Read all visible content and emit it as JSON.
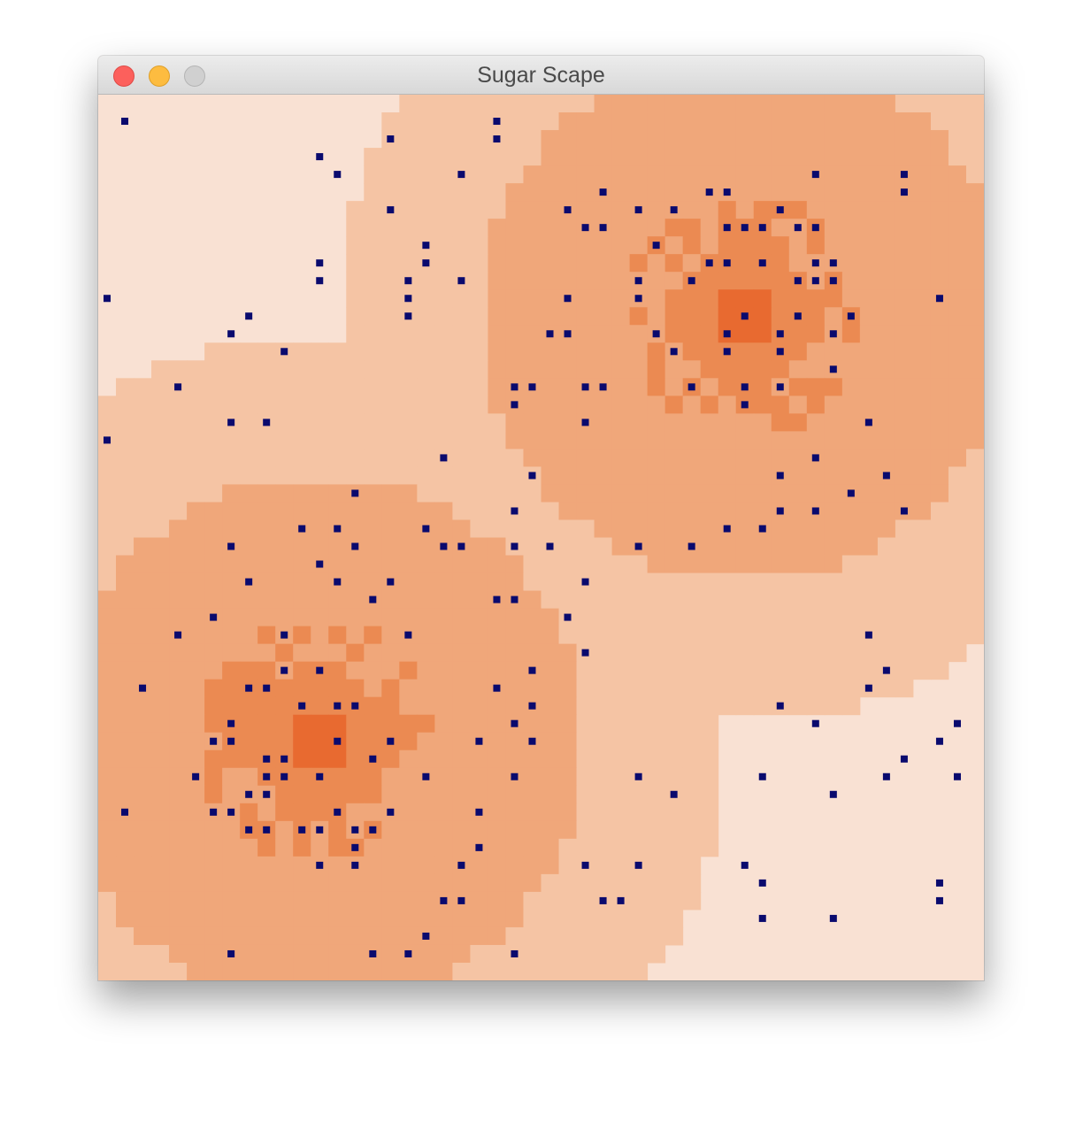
{
  "window": {
    "title": "Sugar Scape",
    "buttons": [
      "close",
      "minimize",
      "zoom"
    ]
  },
  "grid": {
    "size": 50,
    "peaks": [
      [
        36,
        12
      ],
      [
        12,
        36
      ]
    ],
    "level_colors": [
      "#f9e1d3",
      "#f5c4a4",
      "#f0a77a",
      "#eb8a52",
      "#e86a30"
    ]
  },
  "agent_color": "#0a0a6e",
  "agents": [
    [
      1,
      1
    ],
    [
      16,
      2
    ],
    [
      22,
      1
    ],
    [
      22,
      2
    ],
    [
      12,
      3
    ],
    [
      13,
      4
    ],
    [
      20,
      4
    ],
    [
      16,
      6
    ],
    [
      18,
      8
    ],
    [
      18,
      9
    ],
    [
      12,
      9
    ],
    [
      12,
      10
    ],
    [
      17,
      10
    ],
    [
      17,
      11
    ],
    [
      20,
      10
    ],
    [
      17,
      12
    ],
    [
      0,
      11
    ],
    [
      8,
      12
    ],
    [
      7,
      13
    ],
    [
      10,
      14
    ],
    [
      4,
      16
    ],
    [
      7,
      18
    ],
    [
      9,
      18
    ],
    [
      0,
      19
    ],
    [
      26,
      6
    ],
    [
      28,
      5
    ],
    [
      30,
      6
    ],
    [
      27,
      7
    ],
    [
      28,
      7
    ],
    [
      32,
      6
    ],
    [
      34,
      5
    ],
    [
      35,
      5
    ],
    [
      35,
      7
    ],
    [
      36,
      7
    ],
    [
      37,
      7
    ],
    [
      38,
      6
    ],
    [
      39,
      7
    ],
    [
      40,
      7
    ],
    [
      31,
      8
    ],
    [
      34,
      9
    ],
    [
      35,
      9
    ],
    [
      37,
      9
    ],
    [
      40,
      9
    ],
    [
      41,
      9
    ],
    [
      30,
      10
    ],
    [
      30,
      11
    ],
    [
      33,
      10
    ],
    [
      39,
      10
    ],
    [
      40,
      10
    ],
    [
      41,
      10
    ],
    [
      26,
      11
    ],
    [
      36,
      12
    ],
    [
      39,
      12
    ],
    [
      42,
      12
    ],
    [
      25,
      13
    ],
    [
      26,
      13
    ],
    [
      31,
      13
    ],
    [
      35,
      13
    ],
    [
      38,
      13
    ],
    [
      41,
      13
    ],
    [
      32,
      14
    ],
    [
      35,
      14
    ],
    [
      38,
      14
    ],
    [
      33,
      16
    ],
    [
      36,
      16
    ],
    [
      38,
      16
    ],
    [
      36,
      17
    ],
    [
      41,
      15
    ],
    [
      23,
      16
    ],
    [
      24,
      16
    ],
    [
      27,
      16
    ],
    [
      28,
      16
    ],
    [
      23,
      17
    ],
    [
      27,
      18
    ],
    [
      47,
      11
    ],
    [
      43,
      18
    ],
    [
      40,
      4
    ],
    [
      45,
      4
    ],
    [
      45,
      5
    ],
    [
      19,
      20
    ],
    [
      24,
      21
    ],
    [
      14,
      22
    ],
    [
      23,
      23
    ],
    [
      40,
      20
    ],
    [
      38,
      21
    ],
    [
      44,
      21
    ],
    [
      42,
      22
    ],
    [
      38,
      23
    ],
    [
      40,
      23
    ],
    [
      45,
      23
    ],
    [
      11,
      24
    ],
    [
      13,
      24
    ],
    [
      18,
      24
    ],
    [
      35,
      24
    ],
    [
      37,
      24
    ],
    [
      7,
      25
    ],
    [
      14,
      25
    ],
    [
      19,
      25
    ],
    [
      20,
      25
    ],
    [
      23,
      25
    ],
    [
      25,
      25
    ],
    [
      30,
      25
    ],
    [
      33,
      25
    ],
    [
      12,
      26
    ],
    [
      8,
      27
    ],
    [
      13,
      27
    ],
    [
      16,
      27
    ],
    [
      27,
      27
    ],
    [
      15,
      28
    ],
    [
      22,
      28
    ],
    [
      23,
      28
    ],
    [
      6,
      29
    ],
    [
      26,
      29
    ],
    [
      4,
      30
    ],
    [
      10,
      30
    ],
    [
      17,
      30
    ],
    [
      43,
      30
    ],
    [
      27,
      31
    ],
    [
      10,
      32
    ],
    [
      12,
      32
    ],
    [
      24,
      32
    ],
    [
      44,
      32
    ],
    [
      2,
      33
    ],
    [
      8,
      33
    ],
    [
      9,
      33
    ],
    [
      22,
      33
    ],
    [
      43,
      33
    ],
    [
      11,
      34
    ],
    [
      13,
      34
    ],
    [
      14,
      34
    ],
    [
      24,
      34
    ],
    [
      38,
      34
    ],
    [
      7,
      35
    ],
    [
      23,
      35
    ],
    [
      40,
      35
    ],
    [
      48,
      35
    ],
    [
      6,
      36
    ],
    [
      7,
      36
    ],
    [
      13,
      36
    ],
    [
      16,
      36
    ],
    [
      21,
      36
    ],
    [
      24,
      36
    ],
    [
      47,
      36
    ],
    [
      9,
      37
    ],
    [
      10,
      37
    ],
    [
      15,
      37
    ],
    [
      45,
      37
    ],
    [
      5,
      38
    ],
    [
      9,
      38
    ],
    [
      10,
      38
    ],
    [
      12,
      38
    ],
    [
      18,
      38
    ],
    [
      23,
      38
    ],
    [
      30,
      38
    ],
    [
      37,
      38
    ],
    [
      44,
      38
    ],
    [
      48,
      38
    ],
    [
      8,
      39
    ],
    [
      9,
      39
    ],
    [
      32,
      39
    ],
    [
      41,
      39
    ],
    [
      1,
      40
    ],
    [
      6,
      40
    ],
    [
      7,
      40
    ],
    [
      13,
      40
    ],
    [
      16,
      40
    ],
    [
      21,
      40
    ],
    [
      8,
      41
    ],
    [
      9,
      41
    ],
    [
      11,
      41
    ],
    [
      12,
      41
    ],
    [
      14,
      41
    ],
    [
      15,
      41
    ],
    [
      14,
      42
    ],
    [
      21,
      42
    ],
    [
      12,
      43
    ],
    [
      14,
      43
    ],
    [
      20,
      43
    ],
    [
      27,
      43
    ],
    [
      30,
      43
    ],
    [
      36,
      43
    ],
    [
      37,
      44
    ],
    [
      47,
      44
    ],
    [
      19,
      45
    ],
    [
      20,
      45
    ],
    [
      28,
      45
    ],
    [
      29,
      45
    ],
    [
      47,
      45
    ],
    [
      37,
      46
    ],
    [
      41,
      46
    ],
    [
      18,
      47
    ],
    [
      7,
      48
    ],
    [
      15,
      48
    ],
    [
      17,
      48
    ],
    [
      23,
      48
    ]
  ]
}
